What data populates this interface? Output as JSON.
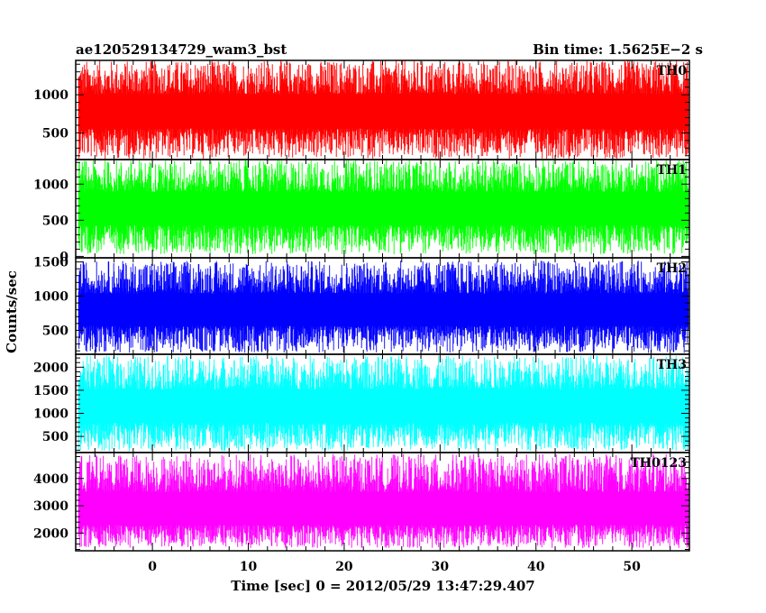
{
  "header": {
    "title": "ae120529134729_wam3_bst",
    "bin_time": "Bin time: 1.5625E−2 s"
  },
  "chart_data": {
    "type": "line",
    "title": "ae120529134729_wam3_bst",
    "xlabel": "Time [sec] 0 = 2012/05/29 13:47:29.407",
    "ylabel": "Counts/sec",
    "xlim": [
      -8,
      56
    ],
    "x_ticks": [
      0,
      10,
      20,
      30,
      40,
      50
    ],
    "grid": false,
    "legend": "none",
    "panels": [
      {
        "name": "TH0",
        "color": "#ff0000",
        "ylim": [
          150,
          1450
        ],
        "y_ticks": [
          500,
          1000
        ],
        "mean": 770,
        "min": 160,
        "max": 1450
      },
      {
        "name": "TH1",
        "color": "#00ff00",
        "ylim": [
          -20,
          1340
        ],
        "y_ticks": [
          0,
          500,
          1000
        ],
        "mean": 650,
        "min": 30,
        "max": 1340
      },
      {
        "name": "TH2",
        "color": "#0000ff",
        "ylim": [
          150,
          1560
        ],
        "y_ticks": [
          500,
          1000,
          1500
        ],
        "mean": 780,
        "min": 170,
        "max": 1520
      },
      {
        "name": "TH3",
        "color": "#00ffff",
        "ylim": [
          150,
          2280
        ],
        "y_ticks": [
          500,
          1000,
          1500,
          2000
        ],
        "mean": 1120,
        "min": 180,
        "max": 2250
      },
      {
        "name": "TH0123",
        "color": "#ff00ff",
        "ylim": [
          1350,
          4950
        ],
        "y_ticks": [
          2000,
          3000,
          4000
        ],
        "mean": 2750,
        "min": 1450,
        "max": 4900
      }
    ]
  }
}
